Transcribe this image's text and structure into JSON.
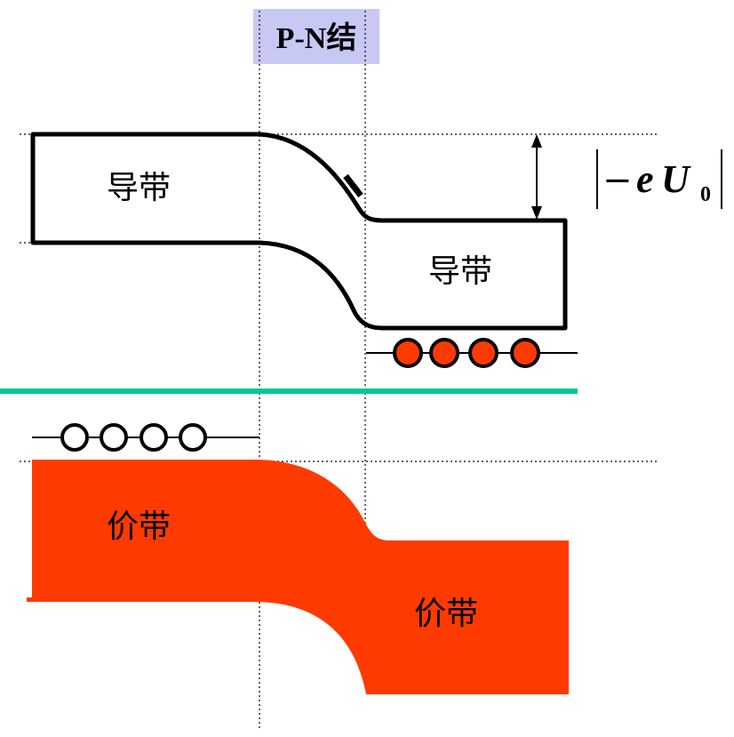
{
  "junction_label": "P-N结",
  "p_side": {
    "conduction_band_label": "导带",
    "valence_band_label": "价带"
  },
  "n_side": {
    "conduction_band_label": "导带",
    "valence_band_label": "价带"
  },
  "barrier_label": {
    "minus": "−",
    "e": "e",
    "U": "U",
    "subscript": "0"
  },
  "colors": {
    "valence_fill": "#ff3a00",
    "electron_fill": "#ff3a00",
    "fermi_level": "#00c896",
    "junction_box": "#c8c8f5"
  }
}
